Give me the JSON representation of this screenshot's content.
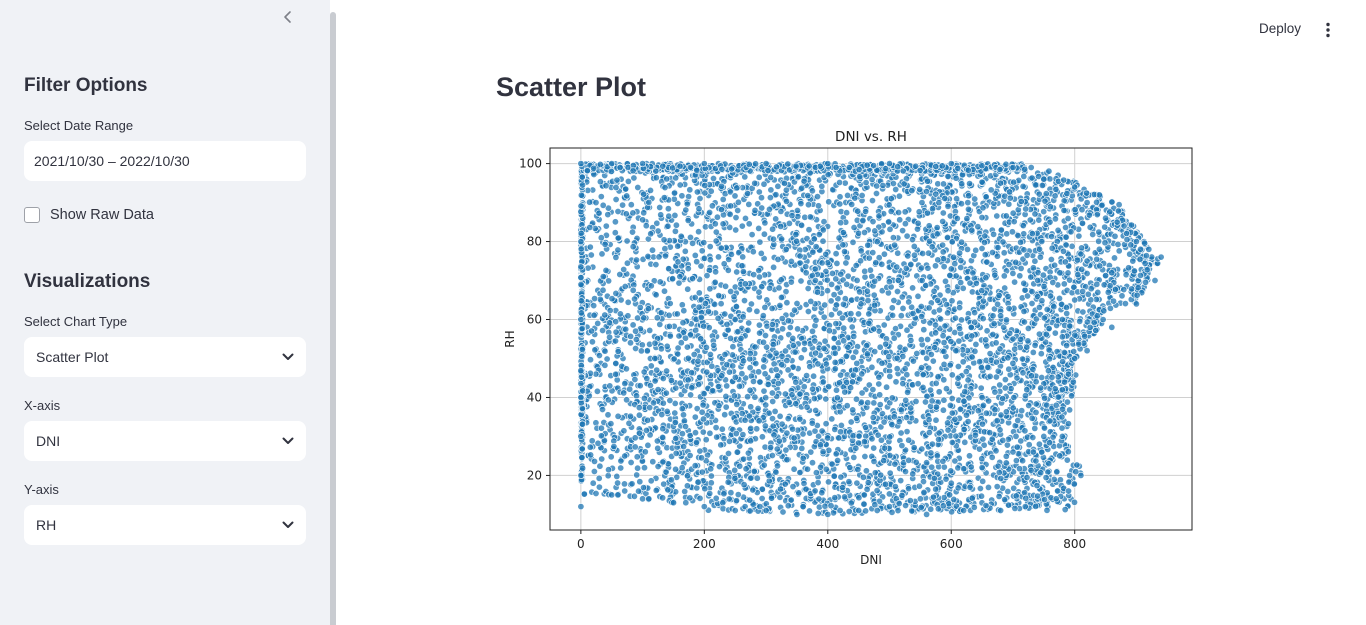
{
  "sidebar": {
    "filter_title": "Filter Options",
    "date_label": "Select Date Range",
    "date_value": "2021/10/30 – 2022/10/30",
    "raw_checkbox_label": "Show Raw Data",
    "raw_checkbox_checked": false,
    "viz_title": "Visualizations",
    "chart_type_label": "Select Chart Type",
    "chart_type_value": "Scatter Plot",
    "x_label": "X-axis",
    "x_value": "DNI",
    "y_label": "Y-axis",
    "y_value": "RH",
    "collapse_icon": "chevron-left-icon"
  },
  "header": {
    "deploy_label": "Deploy",
    "menu_icon": "kebab-menu-icon"
  },
  "main": {
    "title": "Scatter Plot"
  },
  "chart_data": {
    "type": "scatter",
    "title": "DNI vs. RH",
    "xlabel": "DNI",
    "ylabel": "RH",
    "xlim": [
      -50,
      990
    ],
    "ylim": [
      6,
      104
    ],
    "xticks": [
      0,
      200,
      400,
      600,
      800
    ],
    "yticks": [
      20,
      40,
      60,
      80,
      100
    ],
    "grid": true,
    "color": "#1f77b4",
    "density": "dense point cloud",
    "series": [
      {
        "x": [
          0,
          0,
          0,
          0,
          0,
          0,
          0,
          50,
          100,
          200,
          300,
          400,
          500,
          600,
          700,
          750,
          800,
          820,
          850,
          880,
          900,
          920,
          940,
          930,
          900,
          860,
          820,
          800,
          790,
          780,
          770,
          760,
          750,
          700,
          650,
          600,
          550,
          500,
          450,
          400,
          350,
          300,
          250,
          200,
          150,
          100,
          50,
          20,
          120,
          250,
          380,
          480,
          580,
          680,
          780,
          810,
          650,
          700,
          740,
          760,
          780,
          800,
          820,
          840,
          860,
          770,
          790,
          720,
          680,
          620,
          560,
          480,
          420,
          360,
          290,
          230,
          170,
          110,
          60,
          30
        ],
        "y": [
          20,
          40,
          60,
          80,
          100,
          12,
          30,
          100,
          100,
          100,
          100,
          100,
          100,
          100,
          99,
          96,
          94,
          90,
          86,
          84,
          80,
          78,
          76,
          70,
          64,
          58,
          52,
          50,
          46,
          42,
          38,
          34,
          30,
          26,
          22,
          18,
          14,
          12,
          11,
          10,
          10,
          11,
          11,
          12,
          13,
          14,
          15,
          18,
          50,
          60,
          70,
          80,
          90,
          95,
          30,
          20,
          40,
          55,
          70,
          85,
          60,
          65,
          75,
          78,
          72,
          14,
          16,
          12,
          11,
          11,
          10,
          11,
          11,
          12,
          12,
          13,
          13,
          14,
          15,
          17
        ]
      }
    ]
  }
}
